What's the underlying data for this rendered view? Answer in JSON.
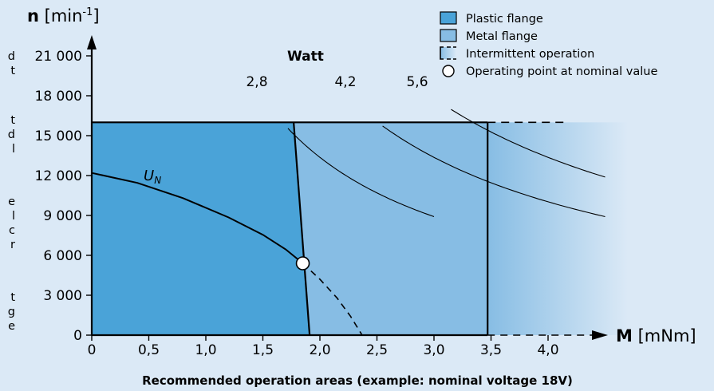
{
  "chart_data": {
    "type": "area",
    "caption": "Recommended operation areas (example: nominal voltage 18V)",
    "ylabel": {
      "symbol": "n",
      "unit_open": " [min",
      "unit_sup": "-1",
      "unit_close": "]"
    },
    "xlabel": {
      "symbol": "M",
      "unit": " [mNm]"
    },
    "xlim": [
      0,
      4.5
    ],
    "ylim": [
      0,
      22000
    ],
    "xticks": [
      {
        "value": 0,
        "label": "0"
      },
      {
        "value": 0.5,
        "label": "0,5"
      },
      {
        "value": 1.0,
        "label": "1,0"
      },
      {
        "value": 1.5,
        "label": "1,5"
      },
      {
        "value": 2.0,
        "label": "2,0"
      },
      {
        "value": 2.5,
        "label": "2,5"
      },
      {
        "value": 3.0,
        "label": "3,0"
      },
      {
        "value": 3.5,
        "label": "3,5"
      },
      {
        "value": 4.0,
        "label": "4,0"
      }
    ],
    "yticks": [
      {
        "value": 0,
        "label": "0"
      },
      {
        "value": 3000,
        "label": "3 000"
      },
      {
        "value": 6000,
        "label": "6 000"
      },
      {
        "value": 9000,
        "label": "9 000"
      },
      {
        "value": 12000,
        "label": "12 000"
      },
      {
        "value": 15000,
        "label": "15 000"
      },
      {
        "value": 18000,
        "label": "18 000"
      },
      {
        "value": 21000,
        "label": "21 000"
      }
    ],
    "legend": [
      {
        "key": "plastic",
        "label": "Plastic flange",
        "color": "#4aa3d8"
      },
      {
        "key": "metal",
        "label": "Metal flange",
        "color": "#87bde4"
      },
      {
        "key": "intermittent",
        "label": "Intermittent operation"
      },
      {
        "key": "point",
        "label": "Operating point at nominal value"
      }
    ],
    "regions": {
      "max_speed": 16000,
      "plastic_flange": {
        "torque_at_max_speed": 1.77,
        "torque_at_zero_speed": 1.91
      },
      "metal_flange": {
        "torque_at_max_speed": 3.47,
        "torque_at_zero_speed": 3.47
      },
      "intermittent_to_torque": 4.7
    },
    "power_curves_title": "Watt",
    "power_curves": [
      {
        "label": "2,8",
        "watts": 2.8,
        "x_from": 1.72,
        "x_to": 3.0
      },
      {
        "label": "4,2",
        "watts": 4.2,
        "x_from": 2.55,
        "x_to": 4.5
      },
      {
        "label": "5,6",
        "watts": 5.6,
        "x_from": 3.15,
        "x_to": 4.5
      }
    ],
    "nominal_curve": {
      "label_main": "U",
      "label_sub": "N",
      "points": [
        [
          0,
          12200
        ],
        [
          0.4,
          11450
        ],
        [
          0.8,
          10300
        ],
        [
          1.2,
          8850
        ],
        [
          1.5,
          7550
        ],
        [
          1.7,
          6450
        ],
        [
          1.85,
          5400
        ],
        [
          2.0,
          4200
        ],
        [
          2.15,
          2800
        ],
        [
          2.27,
          1400
        ],
        [
          2.37,
          0
        ]
      ],
      "solid_until_torque": 1.85
    },
    "operating_point": {
      "x": 1.85,
      "y": 5400
    },
    "grid": false,
    "legend_position": "top-right"
  },
  "side_text": [
    {
      "text": "d",
      "top": 62
    },
    {
      "text": "t",
      "top": 80
    },
    {
      "text": "t",
      "top": 142
    },
    {
      "text": "d",
      "top": 160
    },
    {
      "text": "l",
      "top": 178
    },
    {
      "text": "e",
      "top": 244
    },
    {
      "text": "l",
      "top": 262
    },
    {
      "text": "c",
      "top": 280
    },
    {
      "text": "r",
      "top": 298
    },
    {
      "text": "t",
      "top": 364
    },
    {
      "text": "g",
      "top": 382
    },
    {
      "text": "e",
      "top": 400
    }
  ],
  "colors": {
    "background": "#dbe9f6",
    "plastic": "#4aa3d8",
    "metal": "#87bde4",
    "line": "#000000"
  }
}
